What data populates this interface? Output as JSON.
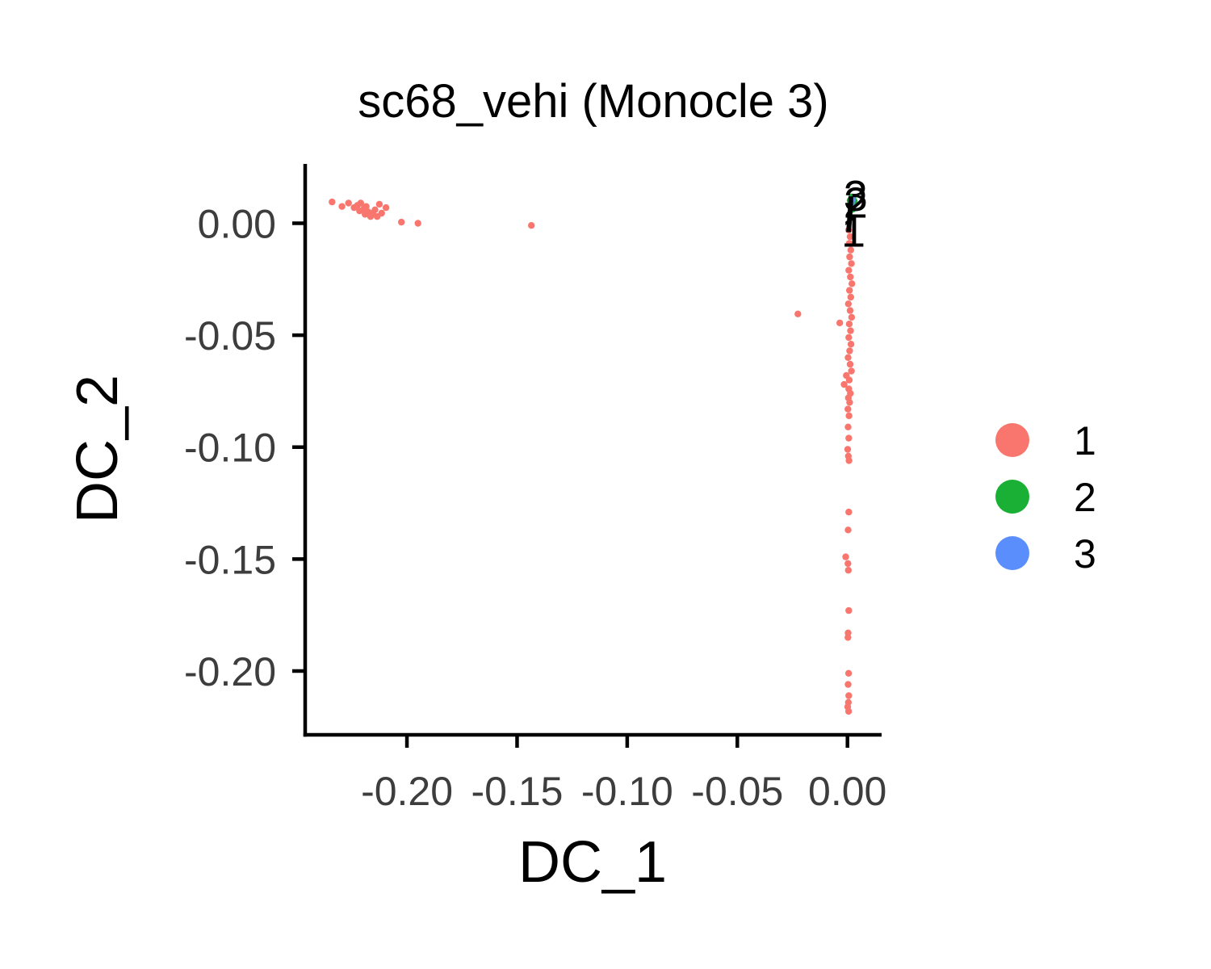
{
  "chart_data": {
    "type": "scatter",
    "title": "sc68_vehi (Monocle 3)",
    "xlabel": "DC_1",
    "ylabel": "DC_2",
    "xlim": [
      -0.2462,
      0.0155
    ],
    "ylim": [
      -0.2285,
      0.0265
    ],
    "xticks": [
      -0.2,
      -0.15,
      -0.1,
      -0.05,
      0.0
    ],
    "xtick_labels": [
      "-0.20",
      "-0.15",
      "-0.10",
      "-0.05",
      "0.00"
    ],
    "yticks": [
      0.0,
      -0.05,
      -0.1,
      -0.15,
      -0.2
    ],
    "ytick_labels": [
      "0.00",
      "-0.05",
      "-0.10",
      "-0.15",
      "-0.20"
    ],
    "grid": false,
    "legend_position": "right",
    "legend": [
      {
        "label": "1",
        "color": "#F8766D"
      },
      {
        "label": "2",
        "color": "#1AAF35"
      },
      {
        "label": "3",
        "color": "#5B8EFD"
      }
    ],
    "series": [
      {
        "name": "1",
        "color": "#F8766D",
        "points": [
          [
            -0.234,
            0.0095
          ],
          [
            -0.2295,
            0.0075
          ],
          [
            -0.2265,
            0.009
          ],
          [
            -0.224,
            0.007
          ],
          [
            -0.2225,
            0.008
          ],
          [
            -0.2215,
            0.0055
          ],
          [
            -0.221,
            0.009
          ],
          [
            -0.2195,
            0.0065
          ],
          [
            -0.219,
            0.004
          ],
          [
            -0.2185,
            0.0075
          ],
          [
            -0.2175,
            0.005
          ],
          [
            -0.2165,
            0.003
          ],
          [
            -0.2155,
            0.0045
          ],
          [
            -0.2145,
            0.006
          ],
          [
            -0.2135,
            0.003
          ],
          [
            -0.2125,
            0.0085
          ],
          [
            -0.2115,
            0.0045
          ],
          [
            -0.2095,
            0.007
          ],
          [
            -0.2025,
            0.0005
          ],
          [
            -0.195,
            0.0
          ],
          [
            -0.1435,
            -0.001
          ],
          [
            -0.0225,
            -0.0405
          ],
          [
            -0.0035,
            -0.0445
          ],
          [
            0.0005,
            -0.003
          ],
          [
            0.0012,
            -0.006
          ],
          [
            0.0008,
            -0.009
          ],
          [
            0.0015,
            -0.012
          ],
          [
            0.001,
            -0.015
          ],
          [
            0.0018,
            -0.018
          ],
          [
            0.0006,
            -0.021
          ],
          [
            0.0013,
            -0.024
          ],
          [
            0.002,
            -0.027
          ],
          [
            0.0009,
            -0.03
          ],
          [
            0.0015,
            -0.033
          ],
          [
            0.0004,
            -0.036
          ],
          [
            0.0012,
            -0.039
          ],
          [
            0.0019,
            -0.042
          ],
          [
            0.0008,
            -0.045
          ],
          [
            0.0014,
            -0.048
          ],
          [
            0.0006,
            -0.051
          ],
          [
            0.0016,
            -0.054
          ],
          [
            0.001,
            -0.057
          ],
          [
            0.0003,
            -0.06
          ],
          [
            0.0012,
            -0.063
          ],
          [
            0.0018,
            -0.066
          ],
          [
            -0.0005,
            -0.068
          ],
          [
            0.0008,
            -0.07
          ],
          [
            -0.0015,
            -0.072
          ],
          [
            0.0006,
            -0.074
          ],
          [
            0.0013,
            -0.076
          ],
          [
            0.0004,
            -0.078
          ],
          [
            0.001,
            -0.08
          ],
          [
            0.0002,
            -0.083
          ],
          [
            0.0007,
            -0.086
          ],
          [
            0.0003,
            -0.091
          ],
          [
            0.0006,
            -0.096
          ],
          [
            0.0001,
            -0.101
          ],
          [
            0.0004,
            -0.104
          ],
          [
            0.0007,
            -0.106
          ],
          [
            0.0006,
            -0.129
          ],
          [
            0.0003,
            -0.137
          ],
          [
            -0.0008,
            -0.149
          ],
          [
            0.0002,
            -0.152
          ],
          [
            0.0004,
            -0.155
          ],
          [
            0.0006,
            -0.173
          ],
          [
            0.0003,
            -0.183
          ],
          [
            0.0002,
            -0.185
          ],
          [
            0.0005,
            -0.201
          ],
          [
            0.0003,
            -0.206
          ],
          [
            0.0006,
            -0.211
          ],
          [
            0.0004,
            -0.214
          ],
          [
            0.0001,
            -0.216
          ],
          [
            0.0005,
            -0.218
          ]
        ]
      },
      {
        "name": "2",
        "color": "#1AAF35",
        "points": [
          [
            0.0018,
            0.0095
          ],
          [
            0.0025,
            0.0112
          ],
          [
            0.0012,
            0.0102
          ],
          [
            0.0028,
            0.0082
          ],
          [
            0.0022,
            0.0062
          ],
          [
            0.0015,
            0.0072
          ],
          [
            0.0031,
            0.0098
          ],
          [
            0.002,
            0.0118
          ]
        ]
      },
      {
        "name": "3",
        "color": "#5B8EFD",
        "points": [
          [
            0.0022,
            0.0105
          ],
          [
            0.0017,
            0.0088
          ]
        ]
      }
    ],
    "trajectory_nodes": [
      {
        "label": "1",
        "x": 0.0005,
        "y": -0.004
      },
      {
        "label": "2",
        "x": 0.0015,
        "y": 0.009
      },
      {
        "label": "3",
        "x": 0.0015,
        "y": 0.012
      }
    ]
  }
}
